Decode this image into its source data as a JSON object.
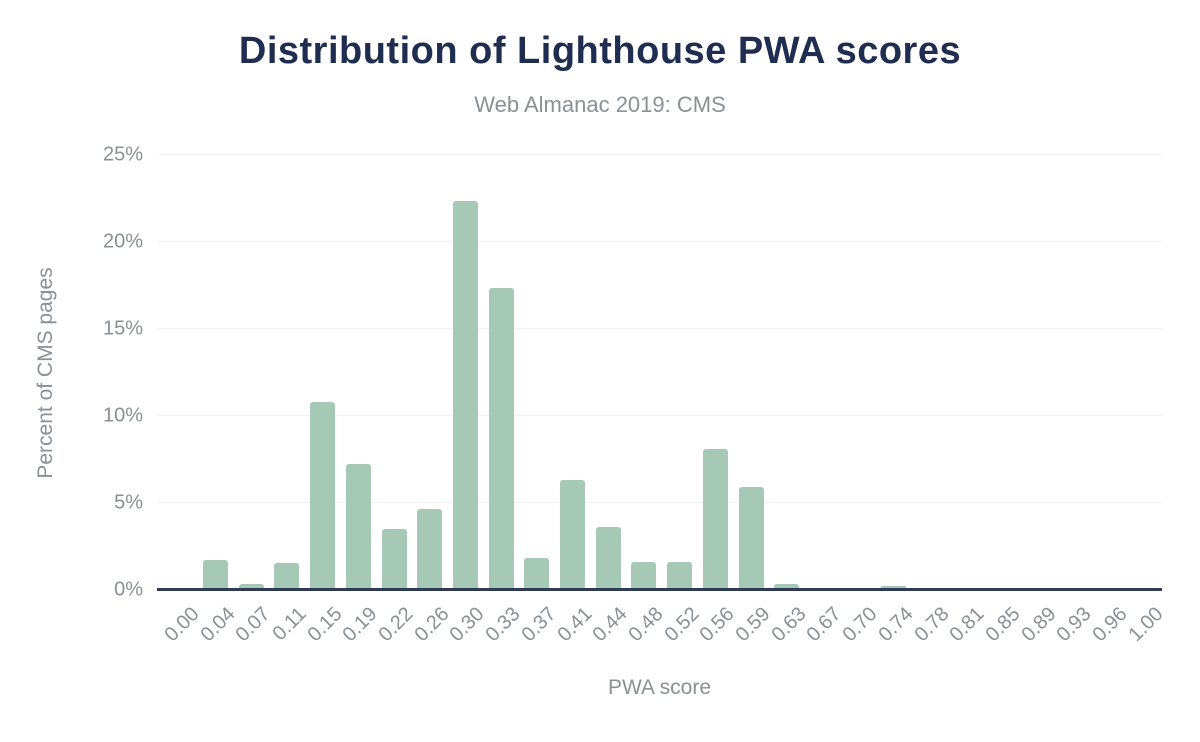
{
  "header": {
    "title": "Distribution of Lighthouse PWA scores",
    "subtitle": "Web Almanac 2019: CMS"
  },
  "colors": {
    "title": "#1f2d50",
    "text": "#8a9096",
    "bar": "#a5c9b5",
    "grid": "#f1f1f1",
    "axis_line": "#2f3b54"
  },
  "chart_data": {
    "type": "bar",
    "title": "Distribution of Lighthouse PWA scores",
    "subtitle": "Web Almanac 2019: CMS",
    "xlabel": "PWA score",
    "ylabel": "Percent of CMS pages",
    "categories": [
      "0.00",
      "0.04",
      "0.07",
      "0.11",
      "0.15",
      "0.19",
      "0.22",
      "0.26",
      "0.30",
      "0.33",
      "0.37",
      "0.41",
      "0.44",
      "0.48",
      "0.52",
      "0.56",
      "0.59",
      "0.63",
      "0.67",
      "0.70",
      "0.74",
      "0.78",
      "0.81",
      "0.85",
      "0.89",
      "0.93",
      "0.96",
      "1.00"
    ],
    "values": [
      0.05,
      1.7,
      0.3,
      1.5,
      10.8,
      7.2,
      3.5,
      4.6,
      22.3,
      17.3,
      1.8,
      6.3,
      3.6,
      1.6,
      1.6,
      8.1,
      5.9,
      0.3,
      0.05,
      0.05,
      0.2,
      0.02,
      0.02,
      0.02,
      0.02,
      0.02,
      0.02,
      0.05
    ],
    "ylim": [
      0,
      25
    ],
    "y_tick_labels": [
      "0%",
      "5%",
      "10%",
      "15%",
      "20%",
      "25%"
    ],
    "y_tick_values": [
      0,
      5,
      10,
      15,
      20,
      25
    ],
    "grid": true,
    "legend": "none",
    "bar_color": "#a5c9b5"
  }
}
